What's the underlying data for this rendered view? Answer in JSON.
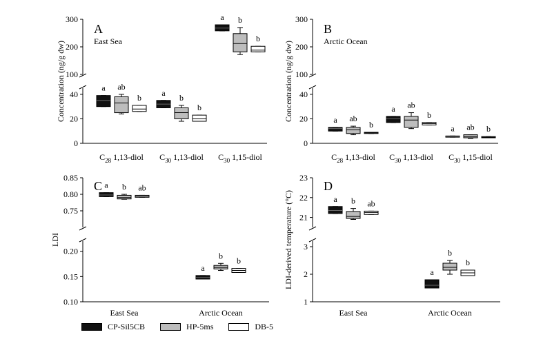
{
  "colors": {
    "CP-Sil5CB": "#111111",
    "HP-5ms": "#bdbdbd",
    "DB-5": "#ffffff"
  },
  "legend": [
    "CP-Sil5CB",
    "HP-5ms",
    "DB-5"
  ],
  "chart_data": [
    {
      "panel": "A",
      "type": "box",
      "region_label": "East Sea",
      "ylabel": "Concentration (ng/g dw)",
      "categories": [
        "C28 1,13-diol",
        "C30 1,13-diol",
        "C30 1,15-diol"
      ],
      "category_labels": [
        {
          "c": "C",
          "sub": "28",
          "rest": " 1,13-diol"
        },
        {
          "c": "C",
          "sub": "30",
          "rest": " 1,13-diol"
        },
        {
          "c": "C",
          "sub": "30",
          "rest": " 1,15-diol"
        }
      ],
      "axis_break": true,
      "lower_range": [
        0,
        45
      ],
      "upper_range": [
        100,
        300
      ],
      "lower_ticks": [
        0,
        20,
        40
      ],
      "upper_ticks": [
        100,
        200,
        300
      ],
      "series_order": [
        "CP-Sil5CB",
        "HP-5ms",
        "DB-5"
      ],
      "boxes": [
        [
          {
            "min": 30,
            "q1": 30,
            "median": 35,
            "q3": 39,
            "max": 39,
            "sig": "a"
          },
          {
            "min": 24,
            "q1": 25,
            "median": 33,
            "q3": 38,
            "max": 40,
            "sig": "ab"
          },
          {
            "min": 26,
            "q1": 26,
            "median": 28,
            "q3": 31,
            "max": 31,
            "sig": "b"
          }
        ],
        [
          {
            "min": 29,
            "q1": 29,
            "median": 32,
            "q3": 35,
            "max": 35,
            "sig": "a"
          },
          {
            "min": 18,
            "q1": 20,
            "median": 25,
            "q3": 29,
            "max": 31,
            "sig": "b"
          },
          {
            "min": 18,
            "q1": 18,
            "median": 20,
            "q3": 23,
            "max": 23,
            "sig": "b"
          }
        ],
        [
          {
            "min": 258,
            "q1": 258,
            "median": 268,
            "q3": 280,
            "max": 280,
            "sig": "a"
          },
          {
            "min": 172,
            "q1": 182,
            "median": 212,
            "q3": 248,
            "max": 270,
            "sig": "b"
          },
          {
            "min": 182,
            "q1": 182,
            "median": 188,
            "q3": 202,
            "max": 202,
            "sig": "b"
          }
        ]
      ]
    },
    {
      "panel": "B",
      "type": "box",
      "region_label": "Arctic Ocean",
      "ylabel": "Concentration (ng/g dw)",
      "categories": [
        "C28 1,13-diol",
        "C30 1,13-diol",
        "C30 1,15-diol"
      ],
      "category_labels": [
        {
          "c": "C",
          "sub": "28",
          "rest": " 1,13-diol"
        },
        {
          "c": "C",
          "sub": "30",
          "rest": " 1,13-diol"
        },
        {
          "c": "C",
          "sub": "30",
          "rest": " 1,15-diol"
        }
      ],
      "axis_break": true,
      "lower_range": [
        0,
        45
      ],
      "upper_range": [
        100,
        300
      ],
      "lower_ticks": [
        0,
        20,
        40
      ],
      "upper_ticks": [
        100,
        200,
        300
      ],
      "series_order": [
        "CP-Sil5CB",
        "HP-5ms",
        "DB-5"
      ],
      "boxes": [
        [
          {
            "min": 10,
            "q1": 10,
            "median": 12,
            "q3": 13,
            "max": 13,
            "sig": "a"
          },
          {
            "min": 7,
            "q1": 8,
            "median": 11,
            "q3": 13,
            "max": 14,
            "sig": "ab"
          },
          {
            "min": 8,
            "q1": 8,
            "median": 8.5,
            "q3": 9,
            "max": 9,
            "sig": "b"
          }
        ],
        [
          {
            "min": 17,
            "q1": 17,
            "median": 20,
            "q3": 22,
            "max": 22,
            "sig": "a"
          },
          {
            "min": 12,
            "q1": 13,
            "median": 19,
            "q3": 22,
            "max": 25,
            "sig": "ab"
          },
          {
            "min": 15,
            "q1": 15,
            "median": 16,
            "q3": 17,
            "max": 17,
            "sig": "b"
          }
        ],
        [
          {
            "min": 5,
            "q1": 5,
            "median": 5.5,
            "q3": 6,
            "max": 6,
            "sig": "a"
          },
          {
            "min": 4,
            "q1": 4.5,
            "median": 5.5,
            "q3": 7,
            "max": 7,
            "sig": "ab"
          },
          {
            "min": 4.5,
            "q1": 4.5,
            "median": 5,
            "q3": 5.5,
            "max": 5.5,
            "sig": "b"
          }
        ]
      ]
    },
    {
      "panel": "C",
      "type": "box",
      "ylabel": "LDI",
      "categories": [
        "East Sea",
        "Arctic Ocean"
      ],
      "axis_break": true,
      "lower_range": [
        0.1,
        0.22
      ],
      "upper_range": [
        0.7,
        0.85
      ],
      "lower_ticks": [
        0.1,
        0.15,
        0.2
      ],
      "upper_ticks": [
        0.75,
        0.8,
        0.85
      ],
      "lower_tick_labels": [
        "0.10",
        "0.15",
        "0.20"
      ],
      "upper_tick_labels": [
        "0.75",
        "0.80",
        "0.85"
      ],
      "series_order": [
        "CP-Sil5CB",
        "HP-5ms",
        "DB-5"
      ],
      "boxes": [
        [
          {
            "min": 0.793,
            "q1": 0.793,
            "median": 0.798,
            "q3": 0.805,
            "max": 0.805,
            "sig": "a"
          },
          {
            "min": 0.785,
            "q1": 0.786,
            "median": 0.79,
            "q3": 0.797,
            "max": 0.8,
            "sig": "b"
          },
          {
            "min": 0.791,
            "q1": 0.791,
            "median": 0.794,
            "q3": 0.797,
            "max": 0.797,
            "sig": "ab"
          }
        ],
        [
          {
            "min": 0.145,
            "q1": 0.145,
            "median": 0.148,
            "q3": 0.152,
            "max": 0.152,
            "sig": "a"
          },
          {
            "min": 0.162,
            "q1": 0.165,
            "median": 0.168,
            "q3": 0.172,
            "max": 0.176,
            "sig": "b"
          },
          {
            "min": 0.158,
            "q1": 0.158,
            "median": 0.162,
            "q3": 0.166,
            "max": 0.166,
            "sig": "b"
          }
        ]
      ]
    },
    {
      "panel": "D",
      "type": "box",
      "ylabel": "LDI-derived temperature (°C)",
      "categories": [
        "East Sea",
        "Arctic Ocean"
      ],
      "axis_break": true,
      "lower_range": [
        1,
        3.2
      ],
      "upper_range": [
        20.5,
        23
      ],
      "lower_ticks": [
        1,
        2,
        3
      ],
      "upper_ticks": [
        21,
        22,
        23
      ],
      "series_order": [
        "CP-Sil5CB",
        "HP-5ms",
        "DB-5"
      ],
      "boxes": [
        [
          {
            "min": 21.2,
            "q1": 21.2,
            "median": 21.35,
            "q3": 21.55,
            "max": 21.55,
            "sig": "a"
          },
          {
            "min": 20.9,
            "q1": 20.95,
            "median": 21.05,
            "q3": 21.3,
            "max": 21.45,
            "sig": "b"
          },
          {
            "min": 21.15,
            "q1": 21.15,
            "median": 21.25,
            "q3": 21.32,
            "max": 21.32,
            "sig": "ab"
          }
        ],
        [
          {
            "min": 1.5,
            "q1": 1.5,
            "median": 1.6,
            "q3": 1.8,
            "max": 1.8,
            "sig": "a"
          },
          {
            "min": 2.0,
            "q1": 2.15,
            "median": 2.25,
            "q3": 2.4,
            "max": 2.5,
            "sig": "b"
          },
          {
            "min": 1.95,
            "q1": 1.95,
            "median": 2.05,
            "q3": 2.15,
            "max": 2.15,
            "sig": "b"
          }
        ]
      ]
    }
  ]
}
